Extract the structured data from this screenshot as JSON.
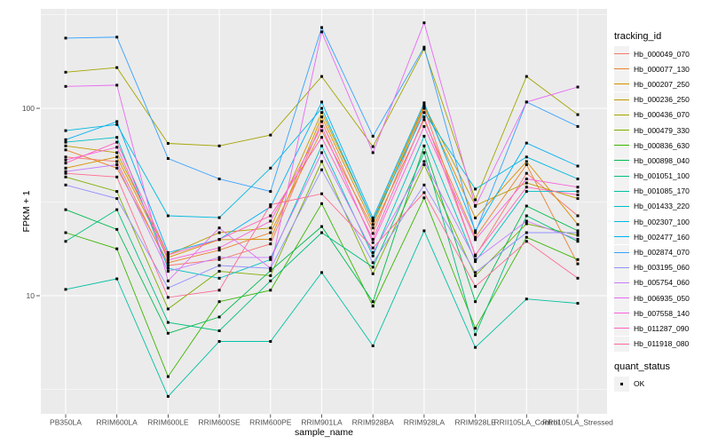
{
  "colors": {
    "panel_bg": "#EBEBEB",
    "grid": "#FFFFFF",
    "tick_text": "#4D4D4D",
    "tick_mark": "#333333",
    "point": "#000000",
    "legend_key_bg": "#F2F2F2"
  },
  "legend": {
    "tracking_title": "tracking_id",
    "quant_title": "quant_status",
    "quant_items": [
      {
        "label": "OK"
      }
    ]
  },
  "chart_data": {
    "type": "line",
    "title": "",
    "xlabel": "sample_name",
    "ylabel": "FPKM + 1",
    "y_scale": "log10",
    "ylim": [
      2.3,
      340
    ],
    "y_ticks": [
      10,
      100
    ],
    "y_minor_ticks": [
      3.1623,
      31.623,
      316.23
    ],
    "grid": true,
    "legend_position": "right",
    "points": "black squares (quant_status OK)",
    "categories": [
      "PB350LA",
      "RRIM600LA",
      "RRIM600LE",
      "RRIM600SE",
      "RRIM600PE",
      "RRIM901LA",
      "RRIM928BA",
      "RRIM928LA",
      "RRIM928LE",
      "RRII105LA_Control",
      "RRII105LA_Stressed"
    ],
    "series": [
      {
        "name": "Hb_000049_070",
        "color": "#F8766D",
        "values": [
          55,
          52,
          14.5,
          15.6,
          18.9,
          85,
          21.5,
          100,
          16.3,
          45,
          26.7
        ]
      },
      {
        "name": "Hb_000077_130",
        "color": "#EA8331",
        "values": [
          60,
          48,
          15.0,
          17.5,
          21.7,
          76,
          23.0,
          87,
          20.5,
          50,
          14.8
        ]
      },
      {
        "name": "Hb_000207_250",
        "color": "#D89000",
        "values": [
          48,
          55,
          16.0,
          19.9,
          20.0,
          90,
          24.0,
          102,
          26.0,
          52,
          24.0
        ]
      },
      {
        "name": "Hb_000236_250",
        "color": "#C09B00",
        "values": [
          63,
          58,
          16.5,
          21.7,
          23.0,
          95,
          25.2,
          104,
          30.3,
          40,
          33.0
        ]
      },
      {
        "name": "Hb_000436_070",
        "color": "#A3A500",
        "values": [
          156,
          165,
          65,
          63,
          72,
          148,
          62.5,
          207,
          32.5,
          148,
          92.5
        ]
      },
      {
        "name": "Hb_000479_330",
        "color": "#7CAE00",
        "values": [
          43,
          36,
          8.5,
          13.5,
          12.8,
          52,
          13.1,
          50,
          12.8,
          24.2,
          21.0
        ]
      },
      {
        "name": "Hb_000836_630",
        "color": "#39B600",
        "values": [
          21.7,
          17.8,
          3.7,
          9.3,
          10.7,
          31,
          8.8,
          33.3,
          6.7,
          20.5,
          15.6
        ]
      },
      {
        "name": "Hb_000898_040",
        "color": "#00BB4E",
        "values": [
          28.8,
          22.6,
          6.3,
          7.7,
          13.6,
          23.4,
          9.3,
          63,
          9.3,
          30.1,
          22.2
        ]
      },
      {
        "name": "Hb_001051_100",
        "color": "#00BF7D",
        "values": [
          19.5,
          28.8,
          7.2,
          6.5,
          12.0,
          21.7,
          14.2,
          58,
          6.2,
          26.7,
          19.5
        ]
      },
      {
        "name": "Hb_001085_170",
        "color": "#00C1A3",
        "values": [
          10.8,
          12.3,
          2.9,
          5.7,
          5.7,
          13.3,
          5.4,
          22.2,
          5.3,
          9.6,
          9.1
        ]
      },
      {
        "name": "Hb_001433_220",
        "color": "#00BFC4",
        "values": [
          66,
          70,
          14.0,
          12.4,
          15.6,
          63,
          16.3,
          71,
          15.2,
          36,
          36.0
        ]
      },
      {
        "name": "Hb_002307_100",
        "color": "#00BAE0",
        "values": [
          76,
          82,
          26.7,
          26.1,
          48,
          100,
          25.0,
          95,
          37.1,
          55,
          42.0
        ]
      },
      {
        "name": "Hb_002477_160",
        "color": "#00B0F6",
        "values": [
          68,
          85,
          17.0,
          20.0,
          29.8,
          108,
          26.0,
          107,
          22.2,
          65.3,
          49.2
        ]
      },
      {
        "name": "Hb_002874_070",
        "color": "#35A2FF",
        "values": [
          237,
          240,
          54,
          42,
          36,
          270,
          71,
          212,
          21.7,
          108,
          80
        ]
      },
      {
        "name": "Hb_003195_060",
        "color": "#9590FF",
        "values": [
          39,
          33,
          11.0,
          14.5,
          14.0,
          47,
          15.0,
          39,
          13.3,
          21.7,
          21.7
        ]
      },
      {
        "name": "Hb_005754_060",
        "color": "#C77CFF",
        "values": [
          46,
          50,
          13.5,
          16.0,
          16.0,
          58,
          17.0,
          52,
          15.6,
          25,
          20.0
        ]
      },
      {
        "name": "Hb_006935_050",
        "color": "#E76BF3",
        "values": [
          131,
          133,
          12.0,
          23.0,
          14.0,
          256,
          58,
          286,
          30.0,
          108,
          130
        ]
      },
      {
        "name": "Hb_007558_140",
        "color": "#FA62DB",
        "values": [
          53,
          62,
          15.5,
          18.0,
          25.0,
          80,
          19.2,
          80,
          19.9,
          42,
          38.0
        ]
      },
      {
        "name": "Hb_011287_090",
        "color": "#FF62BC",
        "values": [
          51,
          66,
          16.5,
          20.0,
          26.7,
          70,
          20.0,
          90,
          16.5,
          38,
          34.5
        ]
      },
      {
        "name": "Hb_011918_080",
        "color": "#FF6A91",
        "values": [
          45,
          43,
          9.8,
          10.7,
          30.6,
          35,
          18.0,
          35.5,
          11.2,
          19.5,
          12.4
        ]
      }
    ]
  }
}
